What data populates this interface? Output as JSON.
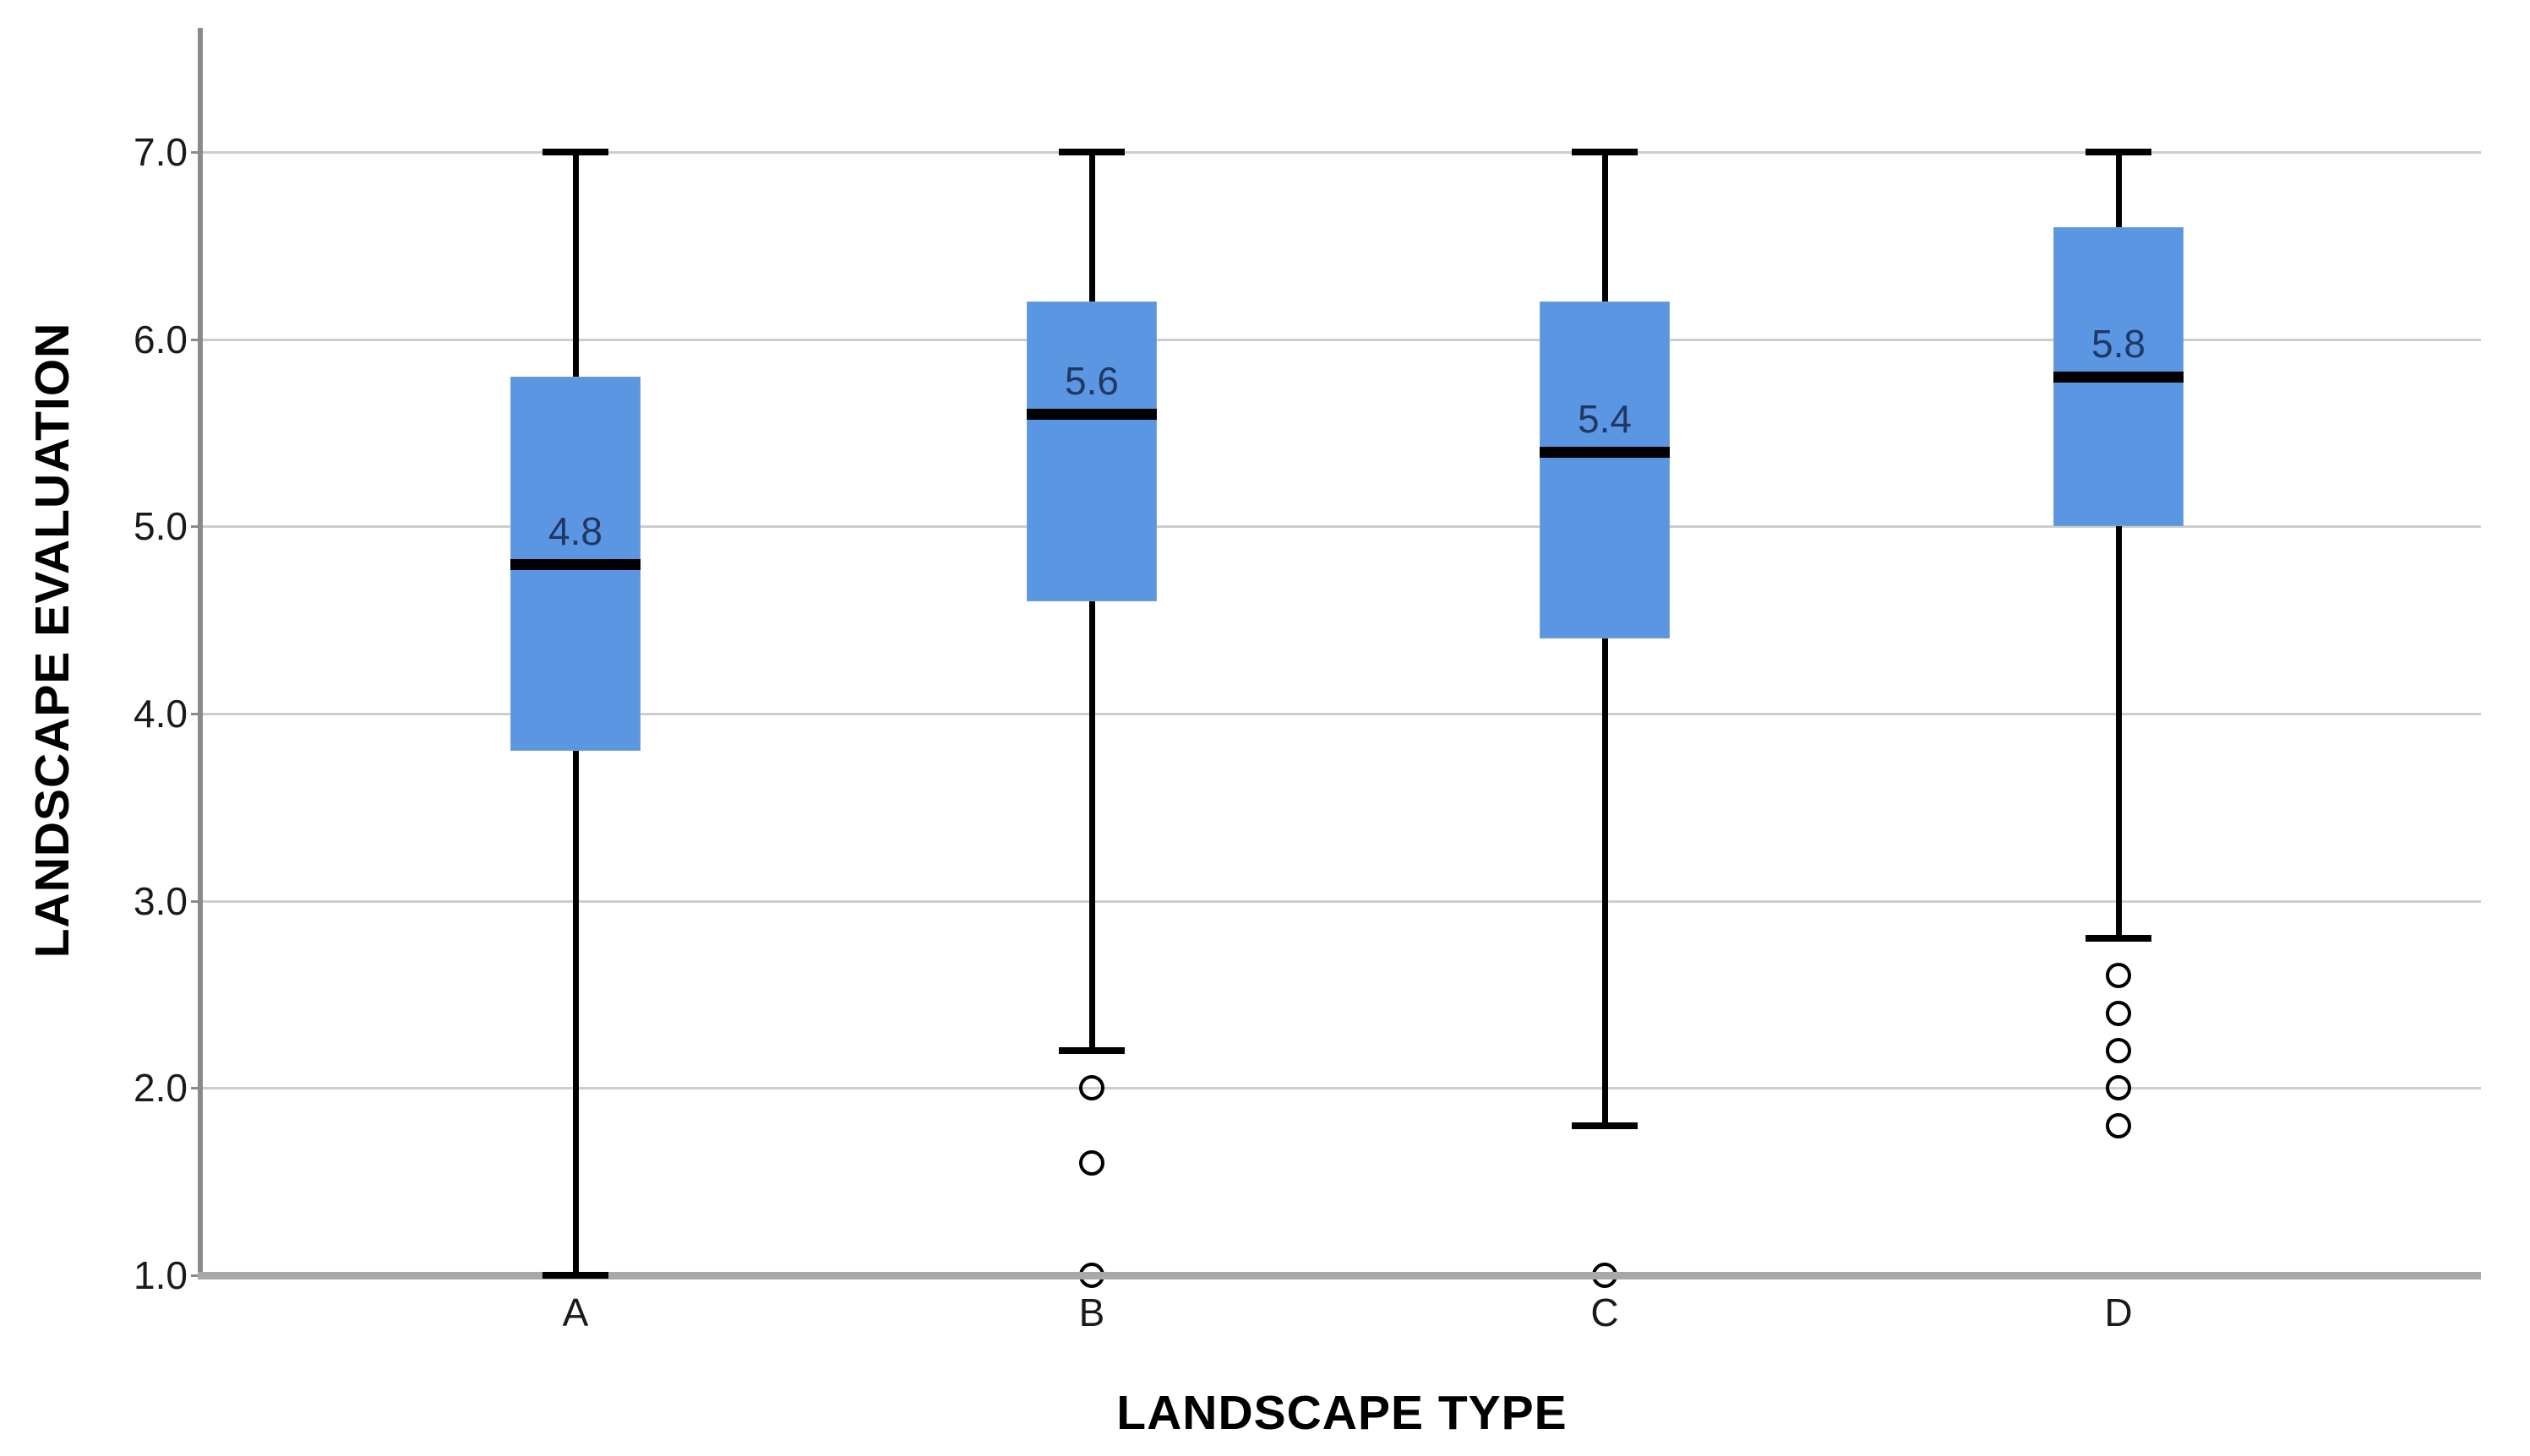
{
  "page": {
    "background": "#ffffff"
  },
  "chart_data": {
    "type": "boxplot",
    "title": "",
    "xlabel": "LANDSCAPE TYPE",
    "ylabel": "LANDSCAPE EVALUATION",
    "categories": [
      "A",
      "B",
      "C",
      "D"
    ],
    "ylim": [
      1.0,
      7.7
    ],
    "grid": "horizontal",
    "legend": "none",
    "yticks": [
      {
        "value": 7.0,
        "label": "7.0"
      },
      {
        "value": 6.0,
        "label": "6.0"
      },
      {
        "value": 5.0,
        "label": "5.0"
      },
      {
        "value": 4.0,
        "label": "4.0"
      },
      {
        "value": 3.0,
        "label": "3.0"
      },
      {
        "value": 2.0,
        "label": "2.0"
      },
      {
        "value": 1.0,
        "label": "1.0"
      }
    ],
    "series": [
      {
        "category": "A",
        "whisker_low": 1.0,
        "q1": 3.8,
        "median": 4.8,
        "q3": 5.8,
        "whisker_high": 7.0,
        "median_label": "4.8",
        "outliers": []
      },
      {
        "category": "B",
        "whisker_low": 2.2,
        "q1": 4.6,
        "median": 5.6,
        "q3": 6.2,
        "whisker_high": 7.0,
        "median_label": "5.6",
        "outliers": [
          2.0,
          1.6,
          1.0
        ]
      },
      {
        "category": "C",
        "whisker_low": 1.8,
        "q1": 4.4,
        "median": 5.4,
        "q3": 6.2,
        "whisker_high": 7.0,
        "median_label": "5.4",
        "outliers": [
          1.0
        ]
      },
      {
        "category": "D",
        "whisker_low": 2.8,
        "q1": 5.0,
        "median": 5.8,
        "q3": 6.6,
        "whisker_high": 7.0,
        "median_label": "5.8",
        "outliers": [
          2.6,
          2.4,
          2.2,
          2.0,
          1.8
        ]
      }
    ],
    "colors": {
      "box_fill": "#5B96E2",
      "box_edge": "#7AA0CF",
      "median_line": "#000000",
      "whisker": "#000000",
      "outlier_stroke": "#000000",
      "gridline": "#CDCDCD",
      "y_axis": "#8A8A8A",
      "x_axis": "#A8A8A8",
      "median_value_text": "#1F3864",
      "tick_text": "#1A1A1A",
      "axis_title_text": "#000000"
    }
  }
}
